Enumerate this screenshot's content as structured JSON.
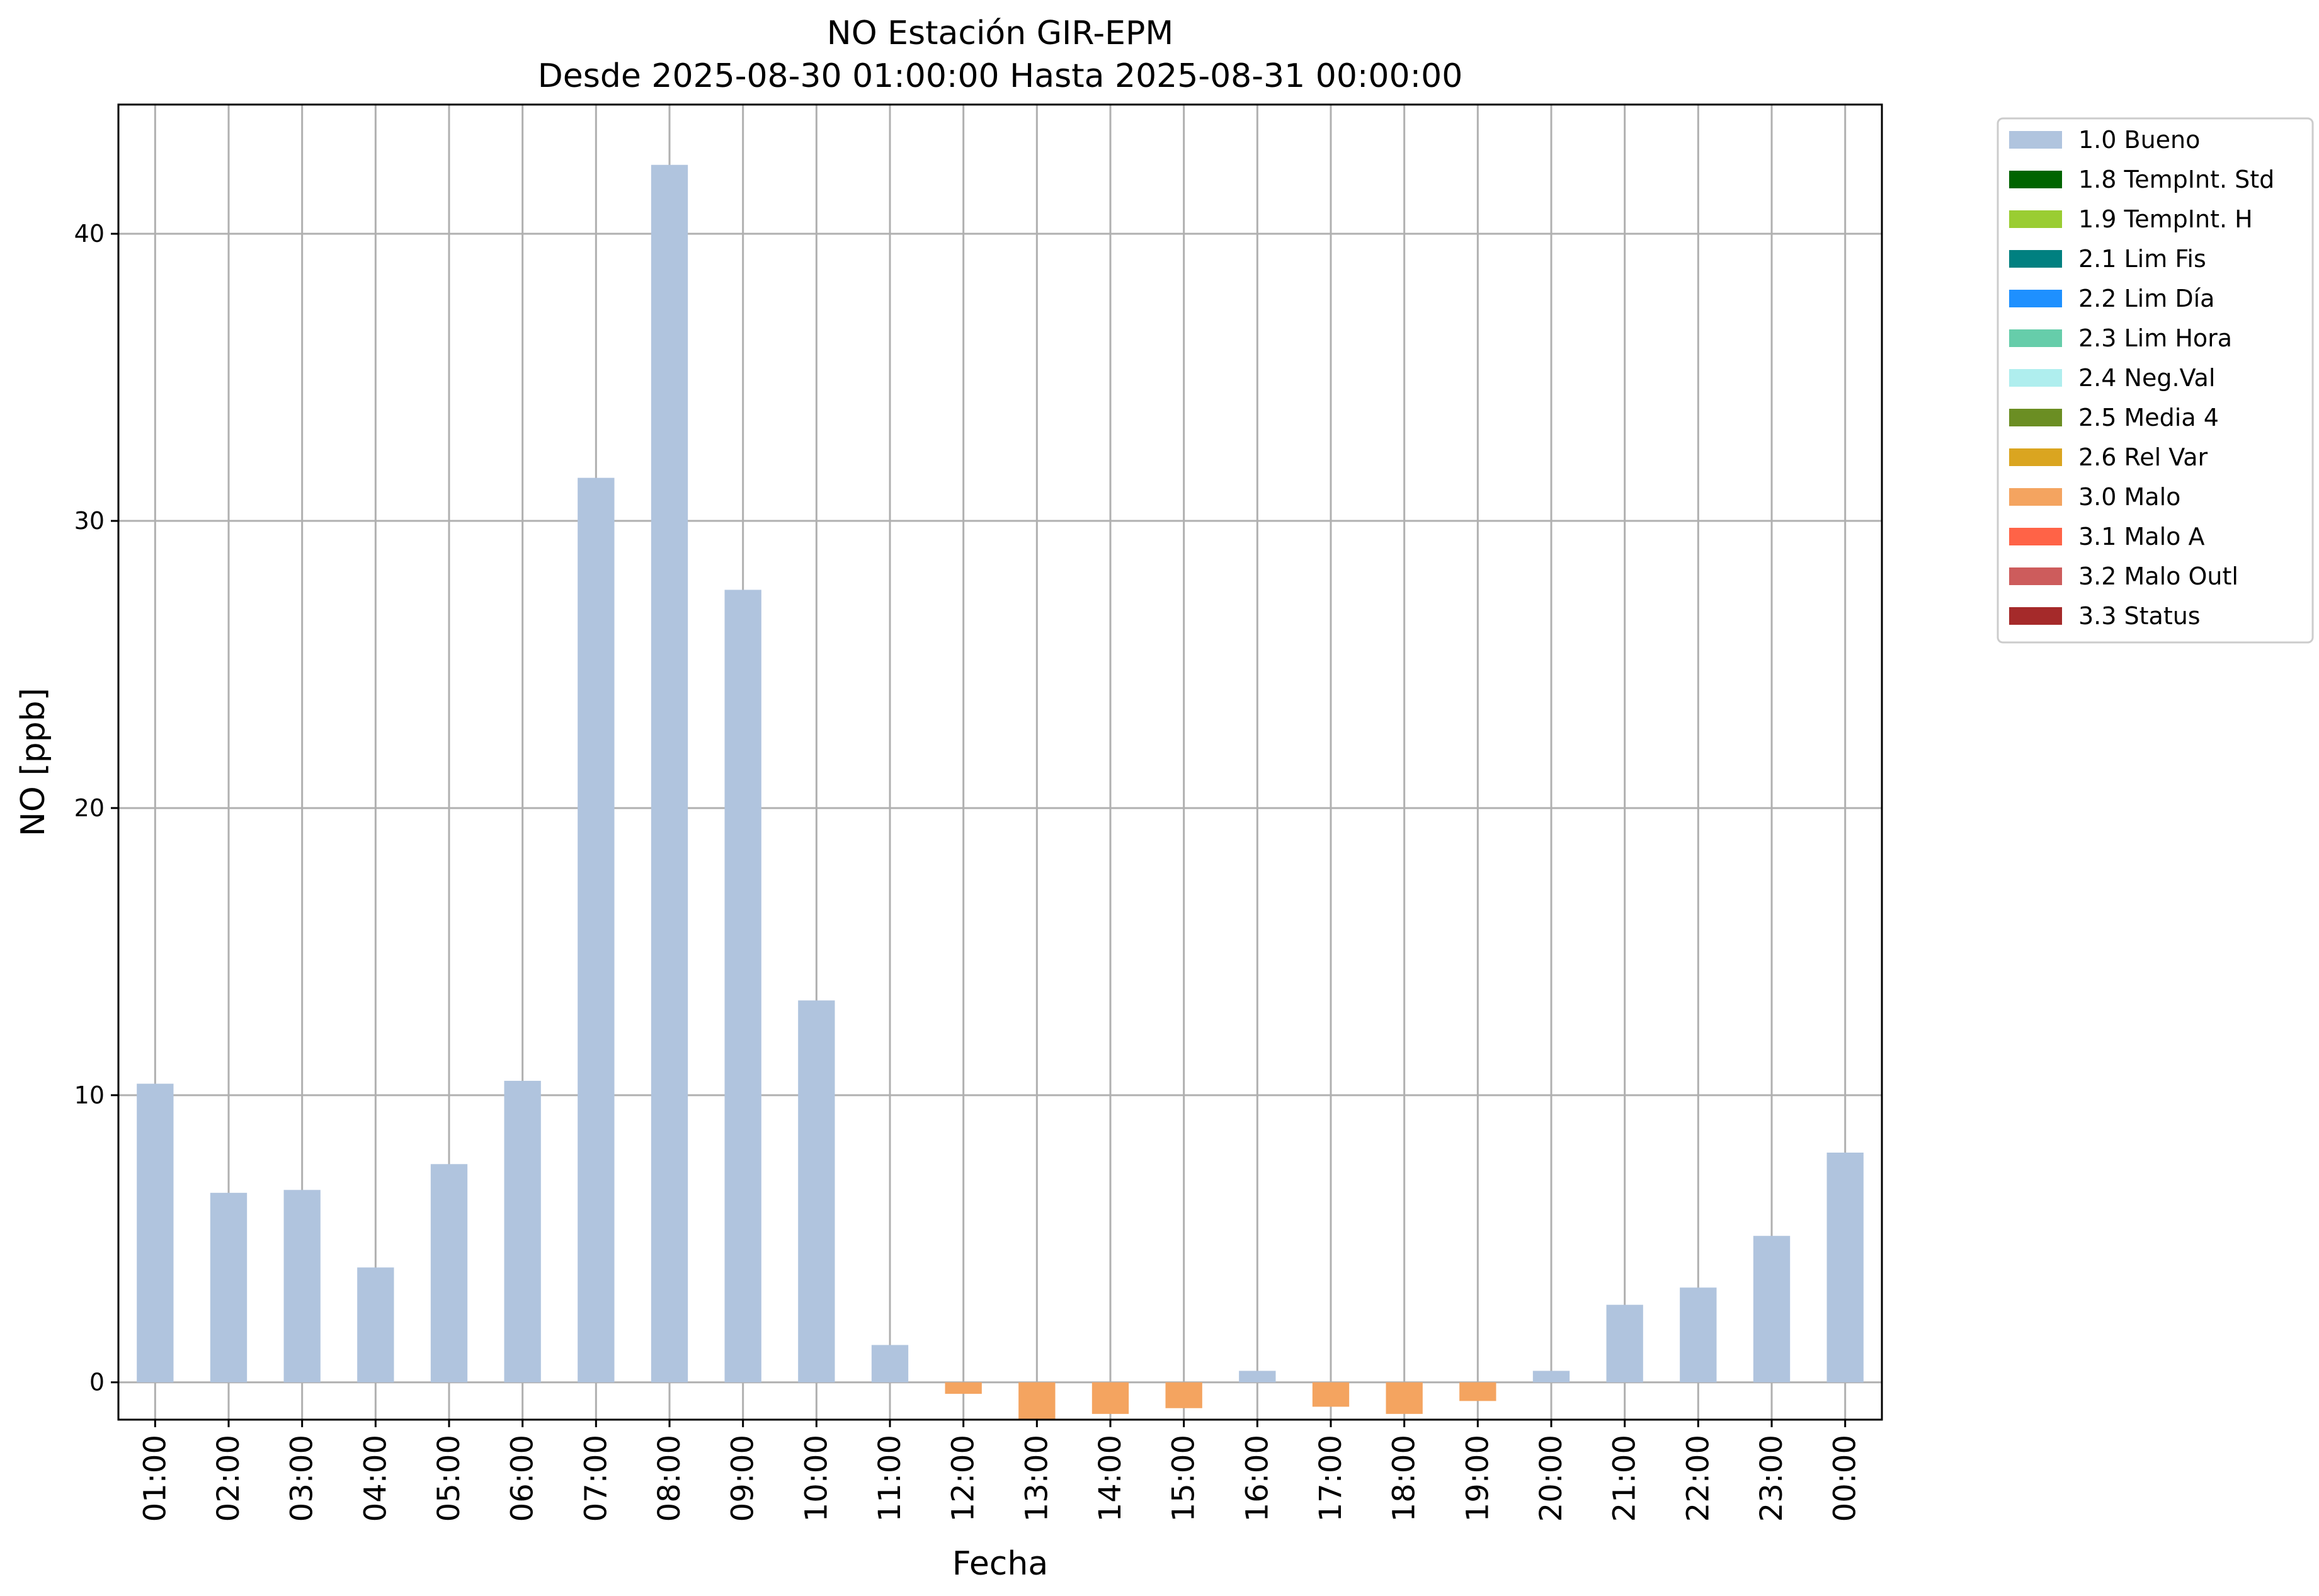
{
  "chart_data": {
    "type": "bar",
    "title": "NO Estación GIR-EPM",
    "subtitle": "Desde 2025-08-30 01:00:00 Hasta 2025-08-31 00:00:00",
    "xlabel": "Fecha",
    "ylabel": "NO [ppb]",
    "ylim": [
      -1.3,
      44.5
    ],
    "yticks": [
      0,
      10,
      20,
      30,
      40
    ],
    "grid": true,
    "legend_position": "outside top-right",
    "categories": [
      "01:00",
      "02:00",
      "03:00",
      "04:00",
      "05:00",
      "06:00",
      "07:00",
      "08:00",
      "09:00",
      "10:00",
      "11:00",
      "12:00",
      "13:00",
      "14:00",
      "15:00",
      "16:00",
      "17:00",
      "18:00",
      "19:00",
      "20:00",
      "21:00",
      "22:00",
      "23:00",
      "00:00"
    ],
    "values": [
      10.4,
      6.6,
      6.7,
      4.0,
      7.6,
      10.5,
      31.5,
      42.4,
      27.6,
      13.3,
      1.3,
      -0.4,
      -1.3,
      -1.1,
      -0.9,
      0.4,
      -0.85,
      -1.1,
      -0.65,
      0.4,
      2.7,
      3.3,
      5.1,
      8.0
    ],
    "flags": [
      "1.0 Bueno",
      "1.0 Bueno",
      "1.0 Bueno",
      "1.0 Bueno",
      "1.0 Bueno",
      "1.0 Bueno",
      "1.0 Bueno",
      "1.0 Bueno",
      "1.0 Bueno",
      "1.0 Bueno",
      "1.0 Bueno",
      "3.0 Malo",
      "3.0 Malo",
      "3.0 Malo",
      "3.0 Malo",
      "1.0 Bueno",
      "3.0 Malo",
      "3.0 Malo",
      "3.0 Malo",
      "1.0 Bueno",
      "1.0 Bueno",
      "1.0 Bueno",
      "1.0 Bueno",
      "1.0 Bueno"
    ],
    "legend": [
      {
        "label": "1.0 Bueno",
        "color": "#b0c4de"
      },
      {
        "label": "1.8 TempInt. Std",
        "color": "#006400"
      },
      {
        "label": "1.9 TempInt. H",
        "color": "#9acd32"
      },
      {
        "label": "2.1 Lim Fis",
        "color": "#008080"
      },
      {
        "label": "2.2 Lim Día",
        "color": "#1e90ff"
      },
      {
        "label": "2.3 Lim Hora",
        "color": "#66cdaa"
      },
      {
        "label": "2.4 Neg.Val",
        "color": "#afeeee"
      },
      {
        "label": "2.5 Media 4",
        "color": "#6b8e23"
      },
      {
        "label": "2.6 Rel Var",
        "color": "#daa520"
      },
      {
        "label": "3.0 Malo",
        "color": "#f4a460"
      },
      {
        "label": "3.1 Malo A",
        "color": "#ff6347"
      },
      {
        "label": "3.2 Malo Outl",
        "color": "#cd5c5c"
      },
      {
        "label": "3.3 Status",
        "color": "#a52a2a"
      }
    ]
  }
}
